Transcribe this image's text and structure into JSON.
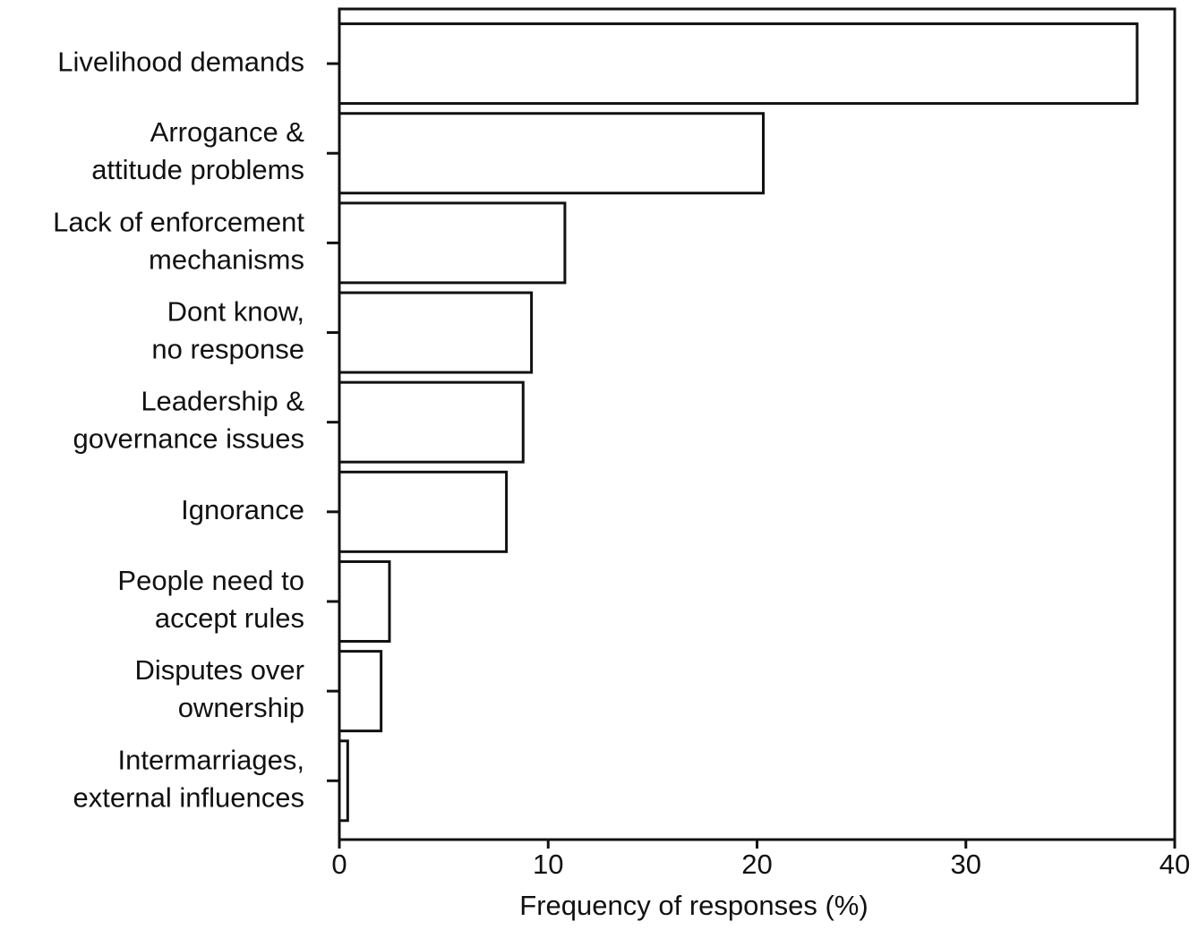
{
  "chart_data": {
    "type": "barh",
    "categories": [
      "Livelihood demands",
      "Arrogance &\nattitude problems",
      "Lack of enforcement\nmechanisms",
      "Dont know,\nno response",
      "Leadership &\ngovernance issues",
      "Ignorance",
      "People need to\naccept rules",
      "Disputes over\nownership",
      "Intermarriages,\nexternal influences"
    ],
    "values": [
      38.2,
      20.3,
      10.8,
      9.2,
      8.8,
      8.0,
      2.4,
      2.0,
      0.4
    ],
    "color": "#ffffff",
    "xlabel": "Frequency of responses (%)",
    "xlim": [
      0,
      40
    ],
    "xticks": [
      0,
      10,
      20,
      30,
      40
    ]
  }
}
